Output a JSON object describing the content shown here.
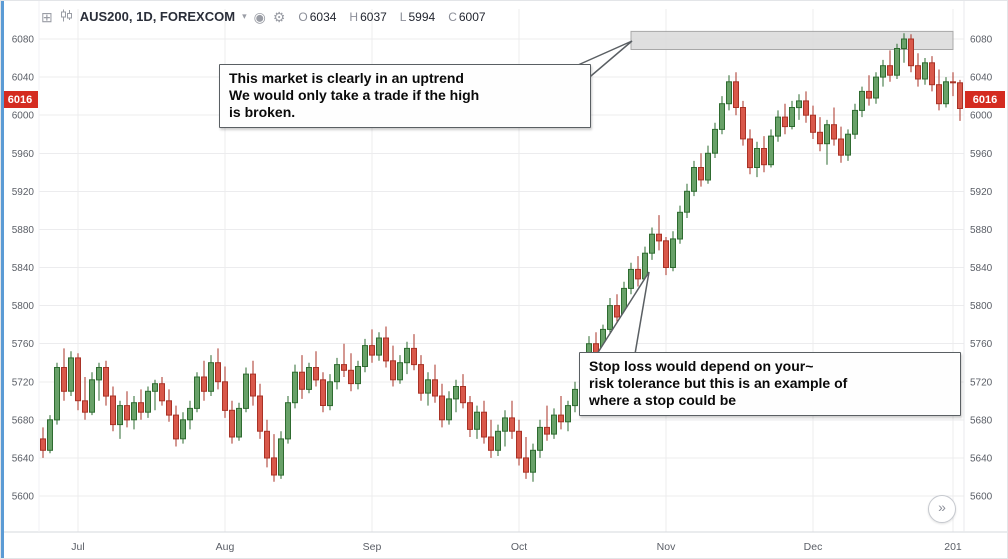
{
  "meta": {
    "accent_color": "#5b9bd5",
    "badge_color": "#d42b20",
    "grid_color": "#ececee",
    "up_color": "#68a168",
    "up_border": "#2e6b30",
    "down_color": "#d9584a",
    "down_border": "#a93226",
    "zone_fill": "#d9d9d9",
    "zone_border": "#a8a8a8"
  },
  "toolbar": {
    "symbol_title": "AUS200, 1D, FOREXCOM",
    "ohlc": [
      {
        "k": "O",
        "v": "6034"
      },
      {
        "k": "H",
        "v": "6037"
      },
      {
        "k": "L",
        "v": "5994"
      },
      {
        "k": "C",
        "v": "6007"
      }
    ]
  },
  "price_axis": {
    "ticks": [
      6080,
      6040,
      6000,
      5960,
      5920,
      5880,
      5840,
      5800,
      5760,
      5720,
      5680,
      5640,
      5600
    ],
    "current_price": "6016"
  },
  "time_axis": {
    "labels": [
      {
        "text": "Jul",
        "i": 5
      },
      {
        "text": "Aug",
        "i": 26
      },
      {
        "text": "Sep",
        "i": 47
      },
      {
        "text": "Oct",
        "i": 68
      },
      {
        "text": "Nov",
        "i": 89
      },
      {
        "text": "Dec",
        "i": 110
      },
      {
        "text": "201",
        "i": 130
      }
    ]
  },
  "annotations": {
    "uptrend": {
      "lines": [
        "This market is clearly in an uptrend",
        "We would only take a trade if the high",
        "is broken."
      ]
    },
    "stoploss": {
      "lines": [
        "Stop loss would depend on your~",
        "risk tolerance but this is an example of",
        "where a stop could be"
      ]
    }
  },
  "controls": {
    "goto_latest": "»"
  },
  "chart_data": {
    "type": "candlestick",
    "symbol": "AUS200",
    "interval": "1D",
    "exchange": "FOREXCOM",
    "price_range": [
      5600,
      6080
    ],
    "tick_step": 40,
    "grid": true,
    "highlight_zone": {
      "price_top": 6088,
      "price_bottom": 6069,
      "start_index": 84,
      "end_index": 130
    },
    "ohlc": [
      [
        5660,
        5672,
        5640,
        5648
      ],
      [
        5648,
        5685,
        5645,
        5680
      ],
      [
        5680,
        5740,
        5675,
        5735
      ],
      [
        5735,
        5755,
        5700,
        5710
      ],
      [
        5710,
        5752,
        5705,
        5745
      ],
      [
        5745,
        5750,
        5690,
        5700
      ],
      [
        5700,
        5725,
        5680,
        5688
      ],
      [
        5688,
        5730,
        5685,
        5722
      ],
      [
        5722,
        5740,
        5700,
        5735
      ],
      [
        5735,
        5742,
        5695,
        5705
      ],
      [
        5705,
        5715,
        5668,
        5675
      ],
      [
        5675,
        5700,
        5660,
        5695
      ],
      [
        5695,
        5710,
        5672,
        5680
      ],
      [
        5680,
        5705,
        5670,
        5698
      ],
      [
        5698,
        5712,
        5680,
        5688
      ],
      [
        5688,
        5715,
        5682,
        5710
      ],
      [
        5710,
        5722,
        5690,
        5718
      ],
      [
        5718,
        5725,
        5695,
        5700
      ],
      [
        5700,
        5712,
        5678,
        5685
      ],
      [
        5685,
        5695,
        5652,
        5660
      ],
      [
        5660,
        5688,
        5655,
        5680
      ],
      [
        5680,
        5700,
        5670,
        5692
      ],
      [
        5692,
        5730,
        5688,
        5725
      ],
      [
        5725,
        5742,
        5700,
        5710
      ],
      [
        5710,
        5748,
        5705,
        5740
      ],
      [
        5740,
        5755,
        5712,
        5720
      ],
      [
        5720,
        5736,
        5682,
        5690
      ],
      [
        5690,
        5700,
        5655,
        5662
      ],
      [
        5662,
        5698,
        5658,
        5692
      ],
      [
        5692,
        5735,
        5688,
        5728
      ],
      [
        5728,
        5742,
        5695,
        5705
      ],
      [
        5705,
        5718,
        5660,
        5668
      ],
      [
        5668,
        5680,
        5630,
        5640
      ],
      [
        5640,
        5665,
        5615,
        5622
      ],
      [
        5622,
        5668,
        5618,
        5660
      ],
      [
        5660,
        5705,
        5655,
        5698
      ],
      [
        5698,
        5738,
        5692,
        5730
      ],
      [
        5730,
        5748,
        5702,
        5712
      ],
      [
        5712,
        5740,
        5708,
        5735
      ],
      [
        5735,
        5752,
        5715,
        5722
      ],
      [
        5722,
        5730,
        5688,
        5695
      ],
      [
        5695,
        5728,
        5690,
        5720
      ],
      [
        5720,
        5745,
        5712,
        5738
      ],
      [
        5738,
        5760,
        5725,
        5732
      ],
      [
        5732,
        5750,
        5710,
        5718
      ],
      [
        5718,
        5742,
        5712,
        5736
      ],
      [
        5736,
        5765,
        5730,
        5758
      ],
      [
        5758,
        5775,
        5740,
        5748
      ],
      [
        5748,
        5772,
        5742,
        5766
      ],
      [
        5766,
        5778,
        5735,
        5742
      ],
      [
        5742,
        5758,
        5715,
        5722
      ],
      [
        5722,
        5748,
        5718,
        5740
      ],
      [
        5740,
        5762,
        5728,
        5755
      ],
      [
        5755,
        5770,
        5732,
        5738
      ],
      [
        5738,
        5748,
        5700,
        5708
      ],
      [
        5708,
        5730,
        5695,
        5722
      ],
      [
        5722,
        5738,
        5698,
        5705
      ],
      [
        5705,
        5718,
        5672,
        5680
      ],
      [
        5680,
        5710,
        5675,
        5702
      ],
      [
        5702,
        5722,
        5688,
        5715
      ],
      [
        5715,
        5728,
        5692,
        5698
      ],
      [
        5698,
        5705,
        5662,
        5670
      ],
      [
        5670,
        5695,
        5660,
        5688
      ],
      [
        5688,
        5700,
        5655,
        5662
      ],
      [
        5662,
        5680,
        5640,
        5648
      ],
      [
        5648,
        5675,
        5642,
        5668
      ],
      [
        5668,
        5690,
        5652,
        5682
      ],
      [
        5682,
        5700,
        5660,
        5668
      ],
      [
        5668,
        5680,
        5632,
        5640
      ],
      [
        5640,
        5662,
        5618,
        5625
      ],
      [
        5625,
        5655,
        5615,
        5648
      ],
      [
        5648,
        5680,
        5640,
        5672
      ],
      [
        5672,
        5695,
        5658,
        5665
      ],
      [
        5665,
        5692,
        5660,
        5685
      ],
      [
        5685,
        5705,
        5670,
        5678
      ],
      [
        5678,
        5700,
        5668,
        5695
      ],
      [
        5695,
        5720,
        5688,
        5712
      ],
      [
        5712,
        5748,
        5708,
        5742
      ],
      [
        5742,
        5768,
        5735,
        5760
      ],
      [
        5760,
        5772,
        5738,
        5745
      ],
      [
        5745,
        5780,
        5742,
        5775
      ],
      [
        5775,
        5808,
        5770,
        5800
      ],
      [
        5800,
        5812,
        5780,
        5788
      ],
      [
        5788,
        5825,
        5785,
        5818
      ],
      [
        5818,
        5845,
        5812,
        5838
      ],
      [
        5838,
        5852,
        5820,
        5828
      ],
      [
        5828,
        5862,
        5825,
        5855
      ],
      [
        5855,
        5882,
        5848,
        5875
      ],
      [
        5875,
        5895,
        5858,
        5868
      ],
      [
        5868,
        5872,
        5832,
        5840
      ],
      [
        5840,
        5878,
        5836,
        5870
      ],
      [
        5870,
        5905,
        5865,
        5898
      ],
      [
        5898,
        5928,
        5892,
        5920
      ],
      [
        5920,
        5952,
        5915,
        5945
      ],
      [
        5945,
        5960,
        5925,
        5932
      ],
      [
        5932,
        5968,
        5928,
        5960
      ],
      [
        5960,
        5992,
        5955,
        5985
      ],
      [
        5985,
        6020,
        5980,
        6012
      ],
      [
        6012,
        6042,
        6005,
        6035
      ],
      [
        6035,
        6045,
        6000,
        6008
      ],
      [
        6008,
        6015,
        5968,
        5975
      ],
      [
        5975,
        5985,
        5938,
        5945
      ],
      [
        5945,
        5972,
        5935,
        5965
      ],
      [
        5965,
        5978,
        5940,
        5948
      ],
      [
        5948,
        5985,
        5945,
        5978
      ],
      [
        5978,
        6005,
        5972,
        5998
      ],
      [
        5998,
        6012,
        5980,
        5988
      ],
      [
        5988,
        6015,
        5985,
        6008
      ],
      [
        6008,
        6022,
        5995,
        6015
      ],
      [
        6015,
        6025,
        5992,
        6000
      ],
      [
        6000,
        6010,
        5975,
        5982
      ],
      [
        5982,
        5998,
        5962,
        5970
      ],
      [
        5970,
        5995,
        5948,
        5990
      ],
      [
        5990,
        6008,
        5968,
        5975
      ],
      [
        5975,
        5988,
        5950,
        5958
      ],
      [
        5958,
        5985,
        5952,
        5980
      ],
      [
        5980,
        6012,
        5975,
        6005
      ],
      [
        6005,
        6030,
        5998,
        6025
      ],
      [
        6025,
        6042,
        6010,
        6018
      ],
      [
        6018,
        6045,
        6012,
        6040
      ],
      [
        6040,
        6058,
        6030,
        6052
      ],
      [
        6052,
        6068,
        6035,
        6042
      ],
      [
        6042,
        6075,
        6038,
        6070
      ],
      [
        6070,
        6086,
        6055,
        6080
      ],
      [
        6080,
        6085,
        6045,
        6052
      ],
      [
        6052,
        6065,
        6030,
        6038
      ],
      [
        6038,
        6060,
        6032,
        6055
      ],
      [
        6055,
        6062,
        6025,
        6032
      ],
      [
        6032,
        6048,
        6005,
        6012
      ],
      [
        6012,
        6040,
        6008,
        6035
      ],
      [
        6035,
        6045,
        6020,
        6034
      ],
      [
        6034,
        6037,
        5994,
        6007
      ]
    ]
  }
}
